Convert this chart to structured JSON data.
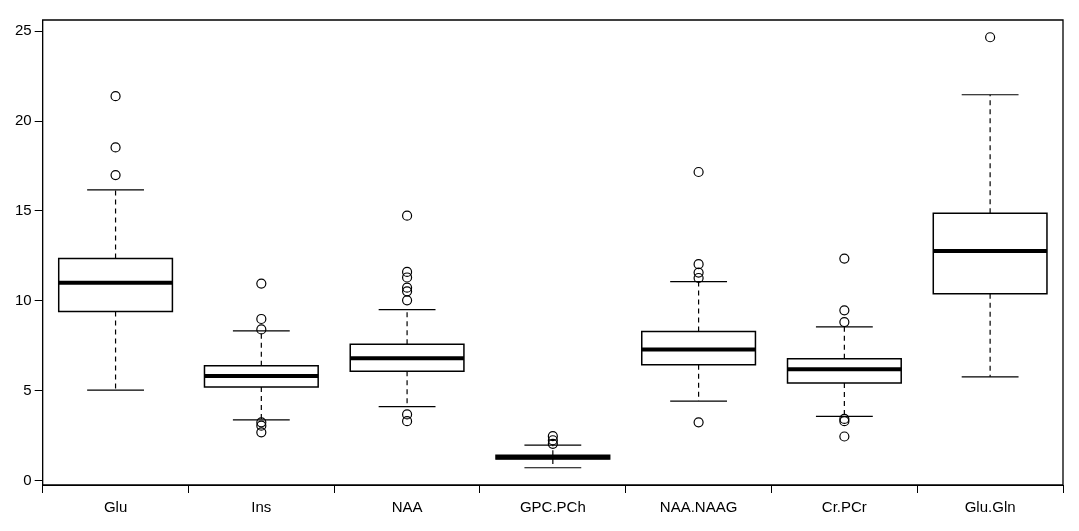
{
  "chart_data": {
    "type": "box",
    "categories": [
      "Glu",
      "Ins",
      "NAA",
      "GPC.PCh",
      "NAA.NAAG",
      "Cr.PCr",
      "Glu.Gln"
    ],
    "boxes": [
      {
        "low": 5.03,
        "q1": 9.41,
        "median": 11.01,
        "q3": 12.36,
        "high": 16.17,
        "outliers": [
          17.0,
          18.54,
          21.39
        ]
      },
      {
        "low": 3.38,
        "q1": 5.21,
        "median": 5.81,
        "q3": 6.39,
        "high": 8.33,
        "outliers": [
          10.96,
          8.99,
          8.41,
          3.24,
          3.05,
          2.68
        ]
      },
      {
        "low": 4.11,
        "q1": 6.08,
        "median": 6.81,
        "q3": 7.58,
        "high": 9.51,
        "outliers": [
          14.74,
          11.61,
          11.3,
          10.73,
          10.53,
          10.03,
          3.68,
          3.3
        ]
      },
      {
        "low": 0.71,
        "q1": 1.2,
        "median": 1.29,
        "q3": 1.4,
        "high": 1.97,
        "outliers": [
          2.47,
          2.24,
          2.04
        ]
      },
      {
        "low": 4.42,
        "q1": 6.44,
        "median": 7.29,
        "q3": 8.29,
        "high": 11.07,
        "outliers": [
          17.17,
          12.04,
          11.57,
          11.27,
          3.24
        ]
      },
      {
        "low": 3.57,
        "q1": 5.42,
        "median": 6.19,
        "q3": 6.77,
        "high": 8.55,
        "outliers": [
          12.35,
          9.47,
          8.82,
          3.43,
          3.3,
          2.45
        ]
      },
      {
        "low": 5.77,
        "q1": 10.4,
        "median": 12.77,
        "q3": 14.87,
        "high": 21.47,
        "outliers": [
          24.67
        ]
      }
    ],
    "color": "#000000",
    "ylim": [
      -0.25,
      25.63
    ],
    "yticks": [
      0,
      5,
      10,
      15,
      20,
      25
    ],
    "grid": false,
    "legend": false
  }
}
